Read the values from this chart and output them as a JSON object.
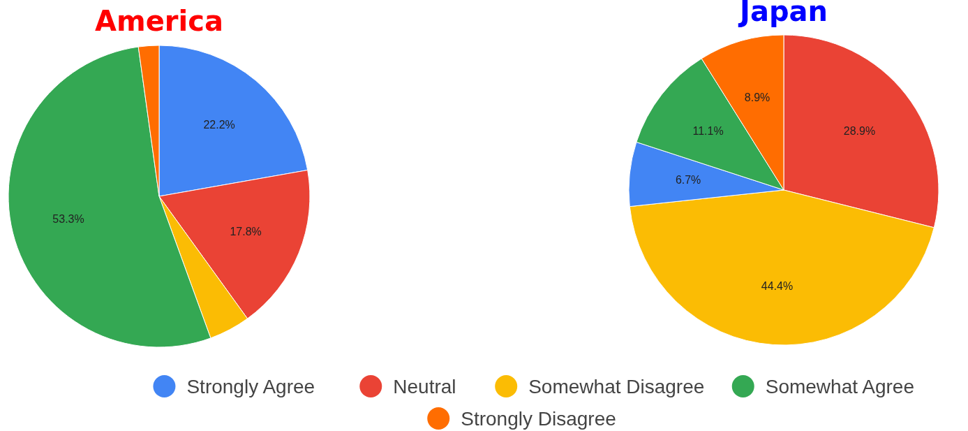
{
  "chart_data": [
    {
      "type": "pie",
      "title": "America",
      "categories": [
        "Strongly Agree",
        "Neutral",
        "Somewhat Disagree",
        "Somewhat Agree",
        "Strongly Disagree"
      ],
      "values": [
        22.2,
        17.8,
        4.4,
        53.3,
        2.2
      ],
      "colors": [
        "#4285f4",
        "#ea4335",
        "#fbbc04",
        "#34a853",
        "#ff6d01"
      ],
      "value_labels": [
        "22.2%",
        "17.8%",
        null,
        "53.3%",
        null
      ],
      "legend": "bottom"
    },
    {
      "type": "pie",
      "title": "Japan",
      "categories": [
        null,
        null,
        null,
        null,
        null
      ],
      "values": [
        28.9,
        44.4,
        6.7,
        11.1,
        8.9
      ],
      "colors": [
        "#ea4335",
        "#fbbc04",
        "#4285f4",
        "#34a853",
        "#ff6d01"
      ],
      "value_labels": [
        "28.9%",
        "44.4%",
        "6.7%",
        "11.1%",
        "8.9%"
      ]
    }
  ]
}
